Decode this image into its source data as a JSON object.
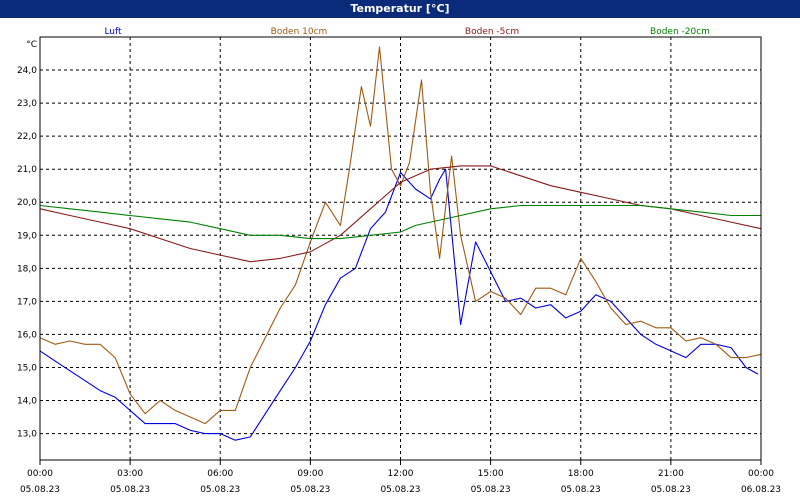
{
  "window": {
    "title": "Temperatur [°C]"
  },
  "chart_data": {
    "type": "line",
    "title": "Temperatur [°C]",
    "ylabel": "°C",
    "ylim": [
      12.2,
      25.0
    ],
    "yticks": [
      "13,0",
      "14,0",
      "15,0",
      "16,0",
      "17,0",
      "18,0",
      "19,0",
      "20,0",
      "21,0",
      "22,0",
      "23,0",
      "24,0"
    ],
    "ytick_values": [
      13,
      14,
      15,
      16,
      17,
      18,
      19,
      20,
      21,
      22,
      23,
      24
    ],
    "xlim": [
      0,
      24
    ],
    "xticks": [
      {
        "x": 0,
        "time": "00:00",
        "date": "05.08.23"
      },
      {
        "x": 3,
        "time": "03:00",
        "date": "05.08.23"
      },
      {
        "x": 6,
        "time": "06:00",
        "date": "05.08.23"
      },
      {
        "x": 9,
        "time": "09:00",
        "date": "05.08.23"
      },
      {
        "x": 12,
        "time": "12:00",
        "date": "05.08.23"
      },
      {
        "x": 15,
        "time": "15:00",
        "date": "05.08.23"
      },
      {
        "x": 18,
        "time": "18:00",
        "date": "05.08.23"
      },
      {
        "x": 21,
        "time": "21:00",
        "date": "05.08.23"
      },
      {
        "x": 24,
        "time": "00:00",
        "date": "06.08.23"
      }
    ],
    "grid": true,
    "legend_position": "top",
    "series": [
      {
        "name": "Luft",
        "color": "#0000e0",
        "x": [
          0,
          0.5,
          1,
          1.5,
          2,
          2.5,
          3,
          3.5,
          4,
          4.5,
          5,
          5.5,
          6,
          6.5,
          7,
          7.5,
          8,
          8.5,
          9,
          9.5,
          10,
          10.5,
          11,
          11.5,
          12,
          12.5,
          13,
          13.3,
          13.5,
          14,
          14.5,
          15,
          15.5,
          16,
          16.5,
          17,
          17.5,
          18,
          18.5,
          19,
          19.5,
          20,
          20.5,
          21,
          21.5,
          22,
          22.5,
          23,
          23.5,
          23.9
        ],
        "y": [
          15.5,
          15.2,
          14.9,
          14.6,
          14.3,
          14.1,
          13.7,
          13.3,
          13.3,
          13.3,
          13.1,
          13.0,
          13.0,
          12.8,
          12.9,
          13.6,
          14.3,
          15.0,
          15.8,
          16.9,
          17.7,
          18.0,
          19.2,
          19.7,
          20.9,
          20.4,
          20.1,
          20.7,
          21.0,
          16.3,
          18.8,
          17.9,
          17.0,
          17.1,
          16.8,
          16.9,
          16.5,
          16.7,
          17.2,
          17.0,
          16.5,
          16.0,
          15.7,
          15.5,
          15.3,
          15.7,
          15.7,
          15.6,
          15.0,
          14.8
        ]
      },
      {
        "name": "Boden 10cm",
        "color": "#a05a14",
        "x": [
          0,
          0.5,
          1,
          1.5,
          2,
          2.5,
          3,
          3.5,
          4,
          4.5,
          5,
          5.5,
          6,
          6.5,
          7,
          7.5,
          8,
          8.5,
          9,
          9.5,
          10,
          10.3,
          10.7,
          11,
          11.3,
          11.7,
          12,
          12.3,
          12.7,
          13,
          13.3,
          13.7,
          14,
          14.5,
          15,
          15.5,
          16,
          16.5,
          17,
          17.5,
          18,
          18.5,
          19,
          19.5,
          20,
          20.5,
          21,
          21.5,
          22,
          22.5,
          23,
          23.5,
          24
        ],
        "y": [
          15.9,
          15.7,
          15.8,
          15.7,
          15.7,
          15.3,
          14.2,
          13.6,
          14.0,
          13.7,
          13.5,
          13.3,
          13.7,
          13.7,
          15.0,
          15.9,
          16.8,
          17.5,
          18.8,
          20.0,
          19.3,
          21.0,
          23.5,
          22.3,
          24.7,
          21.0,
          20.5,
          21.2,
          23.7,
          20.3,
          18.3,
          21.4,
          19.0,
          17.0,
          17.3,
          17.1,
          16.6,
          17.4,
          17.4,
          17.2,
          18.3,
          17.6,
          16.8,
          16.3,
          16.4,
          16.2,
          16.2,
          15.8,
          15.9,
          15.7,
          15.3,
          15.3,
          15.4
        ]
      },
      {
        "name": "Boden -5cm",
        "color": "#8b1a1a",
        "x": [
          0,
          1,
          2,
          3,
          4,
          5,
          6,
          7,
          8,
          9,
          10,
          11,
          12,
          12.5,
          13,
          14,
          15,
          16,
          17,
          18,
          19,
          20,
          21,
          22,
          23,
          24
        ],
        "y": [
          19.8,
          19.6,
          19.4,
          19.2,
          18.9,
          18.6,
          18.4,
          18.2,
          18.3,
          18.5,
          19.0,
          19.8,
          20.6,
          20.8,
          21.0,
          21.1,
          21.1,
          20.8,
          20.5,
          20.3,
          20.1,
          19.9,
          19.8,
          19.6,
          19.4,
          19.2
        ]
      },
      {
        "name": "Boden -20cm",
        "color": "#008000",
        "x": [
          0,
          1,
          2,
          3,
          4,
          5,
          6,
          7,
          8,
          9,
          10,
          11,
          12,
          12.5,
          13,
          14,
          15,
          16,
          17,
          18,
          19,
          20,
          21,
          22,
          23,
          24
        ],
        "y": [
          19.9,
          19.8,
          19.7,
          19.6,
          19.5,
          19.4,
          19.2,
          19.0,
          19.0,
          18.9,
          18.9,
          19.0,
          19.1,
          19.3,
          19.4,
          19.6,
          19.8,
          19.9,
          19.9,
          19.9,
          19.9,
          19.9,
          19.8,
          19.7,
          19.6,
          19.6
        ]
      }
    ]
  }
}
